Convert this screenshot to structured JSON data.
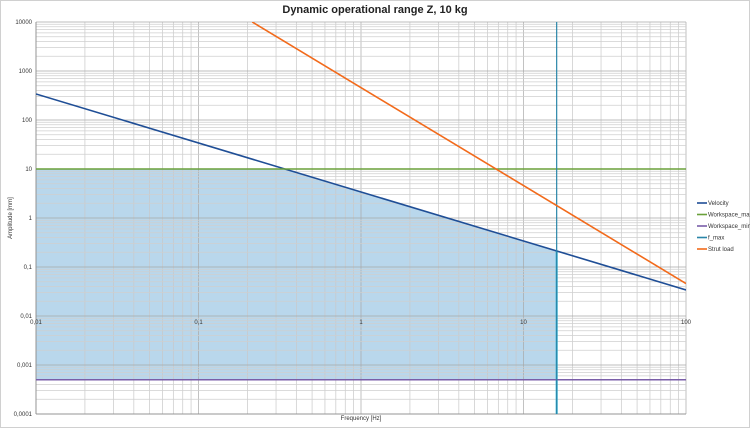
{
  "chart_data": {
    "type": "line",
    "title": "Dynamic operational range Z, 10 kg",
    "xlabel": "Frequency [Hz]",
    "ylabel": "Amplitude [mm]",
    "x_scale": "log",
    "y_scale": "log",
    "xlim": [
      0.01,
      100
    ],
    "ylim": [
      0.0001,
      10000
    ],
    "x_ticks": [
      "0,01",
      "0,1",
      "1",
      "10",
      "100"
    ],
    "y_ticks": [
      "0,0001",
      "0,001",
      "0,01",
      "0,1",
      "1",
      "10",
      "100",
      "1000",
      "10000"
    ],
    "grid": true,
    "legend": "right",
    "series": [
      {
        "name": "Velocity",
        "color": "#1f4e96",
        "x": [
          0.01,
          100
        ],
        "y": [
          340,
          0.034
        ]
      },
      {
        "name": "Workspace_max",
        "color": "#6aa13a",
        "x": [
          0.01,
          100
        ],
        "y": [
          10,
          10
        ]
      },
      {
        "name": "Workspace_min",
        "color": "#7a5ea8",
        "x": [
          0.01,
          100
        ],
        "y": [
          0.0005,
          0.0005
        ]
      },
      {
        "name": "f_max",
        "color": "#2a86a8",
        "x": [
          16,
          16
        ],
        "y": [
          0.0001,
          10000
        ]
      },
      {
        "name": "Strut load",
        "color": "#f26a1b",
        "x": [
          0.214,
          100
        ],
        "y": [
          10000,
          0.046
        ]
      }
    ],
    "shaded_region": {
      "color": "#b9d7ec",
      "edge_color": "#27b3d6",
      "description_bounds": "Workspace_min to min(Velocity, Workspace_max), up to f_max"
    }
  }
}
